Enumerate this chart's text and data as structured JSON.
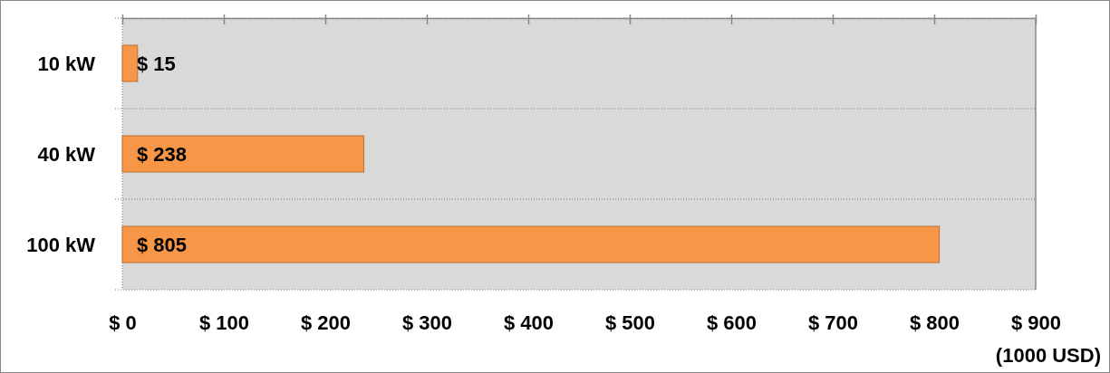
{
  "chart_data": {
    "type": "bar",
    "orientation": "horizontal",
    "categories": [
      "10 kW",
      "40 kW",
      "100 kW"
    ],
    "values": [
      15,
      238,
      805
    ],
    "color": "#f79646",
    "value_labels": [
      "$ 15",
      "$ 238",
      "$ 805"
    ],
    "xlabel": "(1000 USD)",
    "xlim": [
      0,
      900
    ],
    "xticks": [
      {
        "value": 0,
        "label": "$ 0"
      },
      {
        "value": 100,
        "label": "$ 100"
      },
      {
        "value": 200,
        "label": "$ 200"
      },
      {
        "value": 300,
        "label": "$ 300"
      },
      {
        "value": 400,
        "label": "$ 400"
      },
      {
        "value": 500,
        "label": "$ 500"
      },
      {
        "value": 600,
        "label": "$ 600"
      },
      {
        "value": 700,
        "label": "$ 700"
      },
      {
        "value": 800,
        "label": "$ 800"
      },
      {
        "value": 900,
        "label": "$ 900"
      }
    ],
    "grid": "y"
  }
}
